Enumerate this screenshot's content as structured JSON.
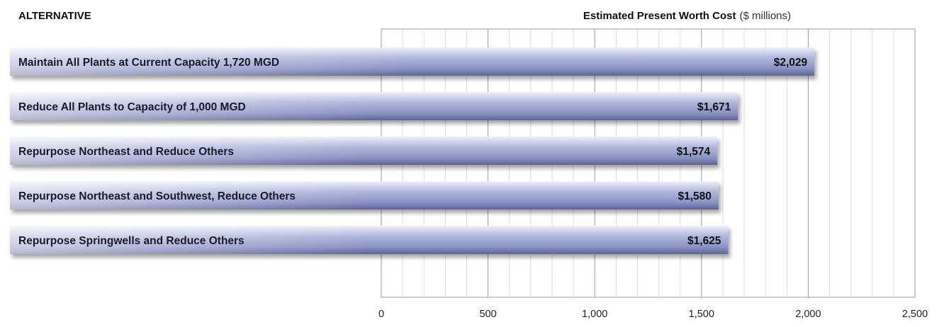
{
  "chart_data": {
    "type": "bar",
    "orientation": "horizontal",
    "category_header": "ALTERNATIVE",
    "title": "Estimated Present Worth Cost",
    "title_unit": "($ millions)",
    "categories": [
      "Maintain All Plants at Current Capacity 1,720 MGD",
      "Reduce All Plants to Capacity of 1,000 MGD",
      "Repurpose Northeast and Reduce Others",
      "Repurpose Northeast and Southwest, Reduce Others",
      "Repurpose Springwells and Reduce Others"
    ],
    "values": [
      2029,
      1671,
      1574,
      1580,
      1625
    ],
    "value_labels": [
      "$2,029",
      "$1,671",
      "$1,574",
      "$1,580",
      "$1,625"
    ],
    "xlim": [
      0,
      2500
    ],
    "ticks": [
      0,
      500,
      1000,
      1500,
      2000,
      2500
    ],
    "tick_labels": [
      "0",
      "500",
      "1,000",
      "1,500",
      "2,000",
      "2,500"
    ],
    "minor_step": 100,
    "grid": true,
    "bar_color": "#8e96c4",
    "grid_major_color": "#999999",
    "grid_minor_color": "#dddddd"
  }
}
